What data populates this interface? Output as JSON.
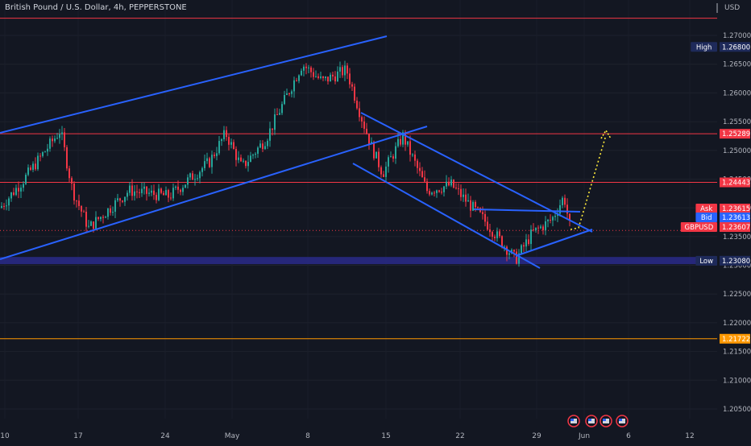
{
  "header": {
    "title": "British Pound / U.S. Dollar, 4h, PEPPERSTONE"
  },
  "axis": {
    "currency": "USD",
    "price_ticks": [
      "1.27000",
      "1.26500",
      "1.26000",
      "1.25500",
      "1.25000",
      "1.24500",
      "1.24000",
      "1.23500",
      "1.23000",
      "1.22500",
      "1.22000",
      "1.21500",
      "1.21000",
      "1.20500"
    ],
    "date_ticks": [
      "10",
      "17",
      "24",
      "May",
      "8",
      "15",
      "22",
      "29",
      "Jun",
      "6",
      "12"
    ]
  },
  "levels": [
    {
      "name": "top",
      "price": "1.27300",
      "color": "#f23645"
    },
    {
      "name": "resistance",
      "price": "1.25289",
      "color": "#f23645"
    },
    {
      "name": "level",
      "price": "1.24443",
      "color": "#f23645"
    },
    {
      "name": "support",
      "price": "1.21722",
      "color": "#ff9800"
    }
  ],
  "badges": {
    "high": {
      "label": "High",
      "value": "1.26800"
    },
    "low": {
      "label": "Low",
      "value": "1.23080"
    },
    "ask": {
      "label": "Ask",
      "value": "1.23615"
    },
    "bid": {
      "label": "Bid",
      "value": "1.23613"
    },
    "last": {
      "label": "GBPUSD",
      "value": "1.23607"
    }
  },
  "colors": {
    "up": "#26a69a",
    "down": "#f23645",
    "channel": "#2962ff",
    "projection": "#ffeb3b"
  },
  "chart_data": {
    "type": "candlestick",
    "symbol": "GBPUSD",
    "timeframe": "4h",
    "ylim": [
      1.2035,
      1.2735
    ],
    "x": [
      "10",
      "17",
      "24",
      "May",
      "8",
      "15",
      "22",
      "29",
      "Jun",
      "6",
      "12"
    ],
    "close_path": [
      {
        "date": "10",
        "close": 1.24
      },
      {
        "date": "12",
        "close": 1.245
      },
      {
        "date": "15",
        "close": 1.253
      },
      {
        "date": "17",
        "close": 1.244
      },
      {
        "date": "19",
        "close": 1.2365
      },
      {
        "date": "21",
        "close": 1.244
      },
      {
        "date": "24",
        "close": 1.242
      },
      {
        "date": "26",
        "close": 1.248
      },
      {
        "date": "28",
        "close": 1.25
      },
      {
        "date": "May",
        "close": 1.254
      },
      {
        "date": "3",
        "close": 1.248
      },
      {
        "date": "5",
        "close": 1.26
      },
      {
        "date": "8",
        "close": 1.264
      },
      {
        "date": "10",
        "close": 1.262
      },
      {
        "date": "11",
        "close": 1.255
      },
      {
        "date": "15",
        "close": 1.251
      },
      {
        "date": "17",
        "close": 1.247
      },
      {
        "date": "22",
        "close": 1.242
      },
      {
        "date": "24",
        "close": 1.239
      },
      {
        "date": "26",
        "close": 1.231
      },
      {
        "date": "29",
        "close": 1.238
      },
      {
        "date": "31",
        "close": 1.2361
      }
    ],
    "high": 1.268,
    "low": 1.2308,
    "last": 1.23607
  }
}
